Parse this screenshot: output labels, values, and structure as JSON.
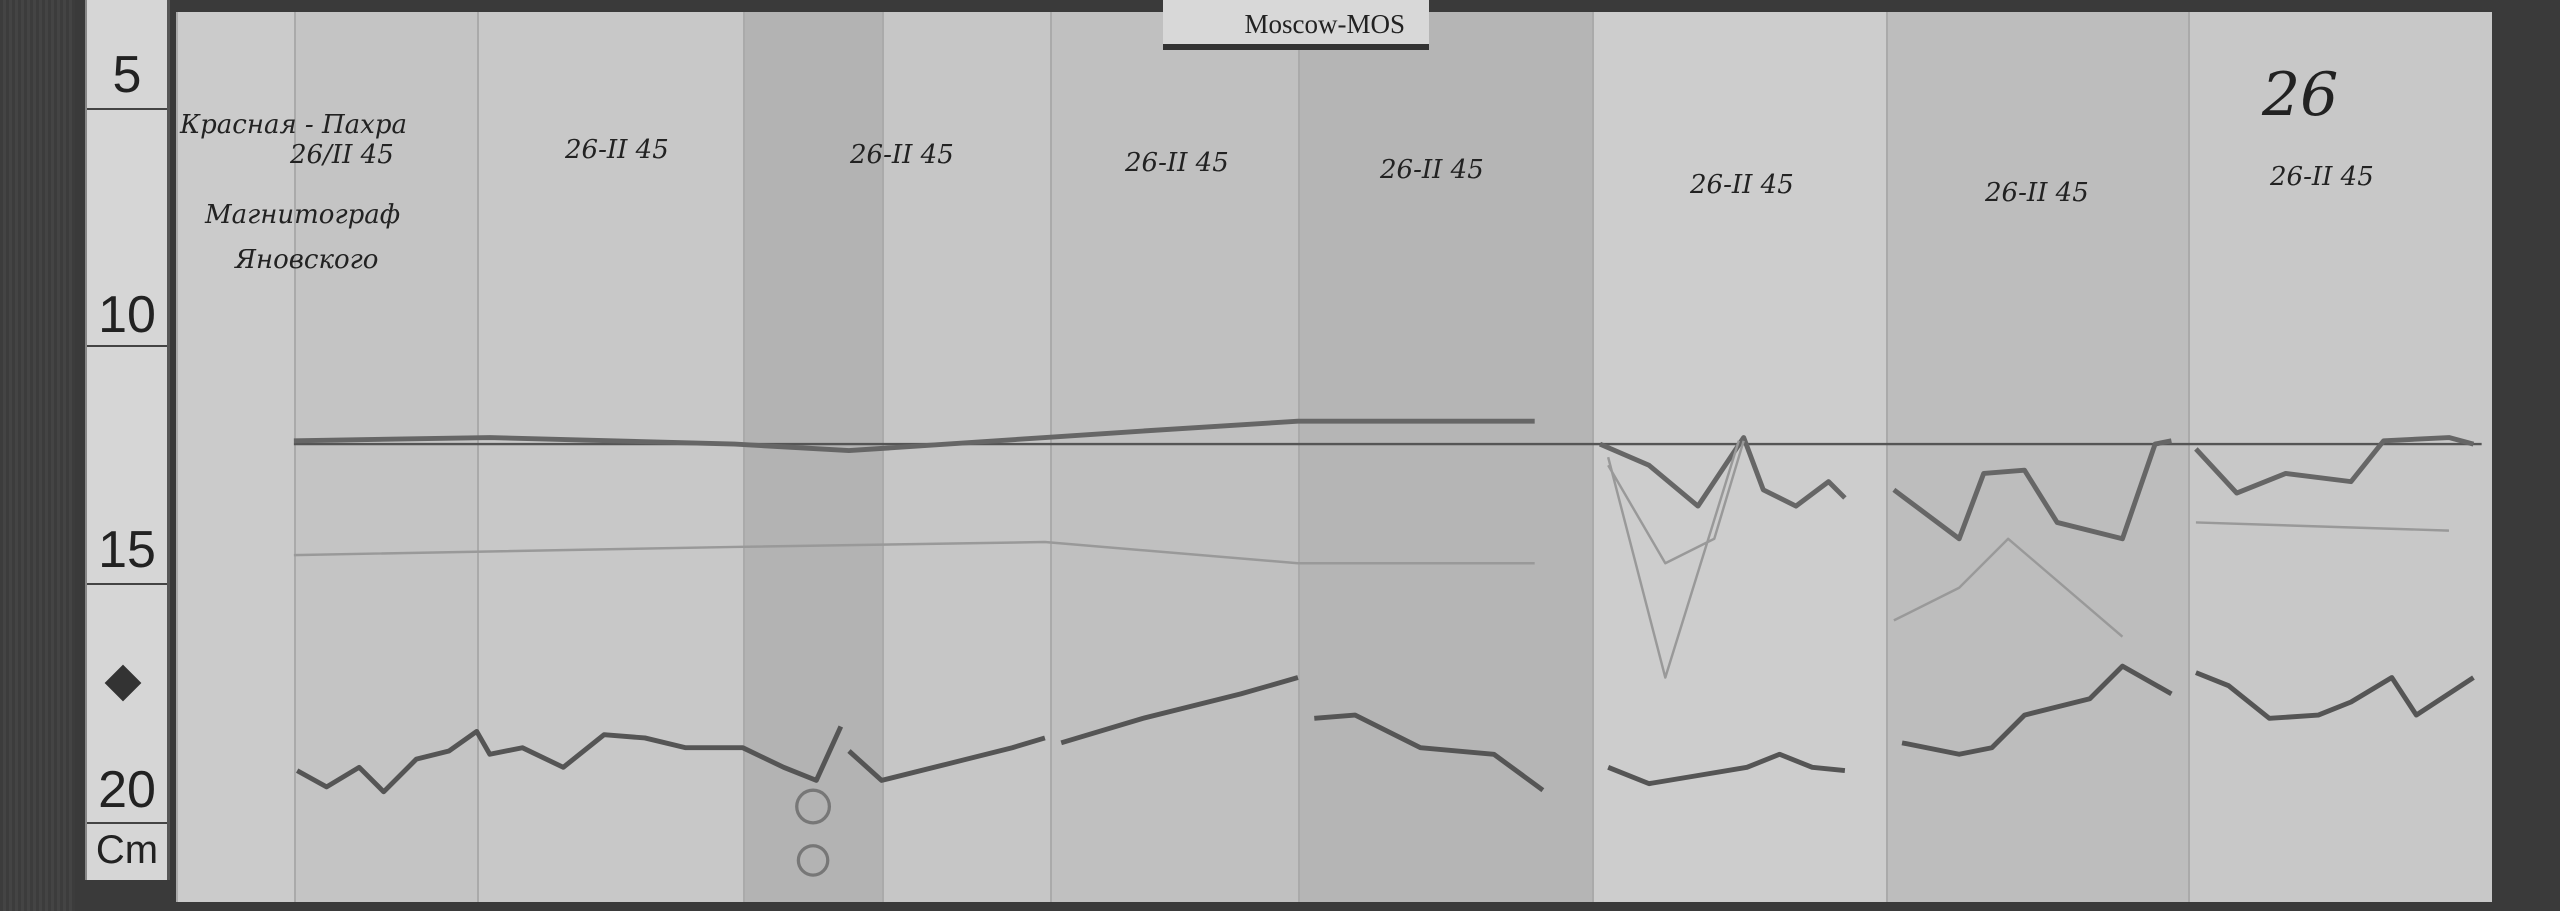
{
  "tag": "Moscow-MOS",
  "ruler": {
    "marks": [
      "5",
      "10",
      "15",
      "20"
    ],
    "unit": "Cm"
  },
  "header_note": {
    "station": "Красная - Пахра",
    "date": "26/II 45",
    "instrument": "Магнитограф",
    "maker": "Яновского"
  },
  "panel_dates": [
    "26-II 45",
    "26-II 45",
    "26-II 45",
    "26-II 45",
    "26-II 45",
    "26-II 45",
    "26-II 45"
  ],
  "page_number": "26"
}
